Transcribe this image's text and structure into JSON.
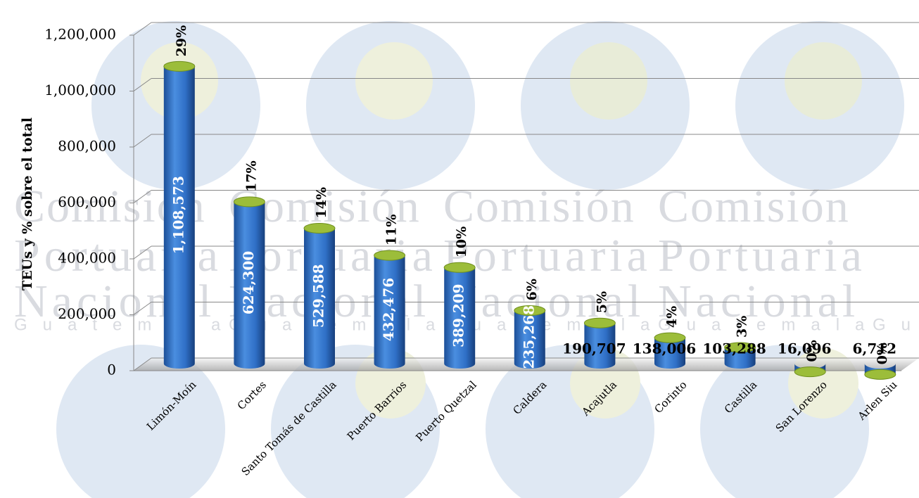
{
  "chart_data": {
    "type": "cylinder-bar",
    "y_label": "TEUs y % sobre el total",
    "categories": [
      "Limón-Moín",
      "Cortes",
      "Santo Tomás de Castilla",
      "Puerto Barrios",
      "Puerto Quetzal",
      "Caldera",
      "Acajutla",
      "Corinto",
      "Castilla",
      "San Lorenzo",
      "Arlen Siu"
    ],
    "values": [
      1108573,
      624300,
      529588,
      432476,
      389209,
      235268,
      190707,
      138006,
      103288,
      16096,
      6712
    ],
    "value_labels": [
      "1,108,573",
      "624,300",
      "529,588",
      "432,476",
      "389,209",
      "235,268",
      "190,707",
      "138,006",
      "103,288",
      "16,096",
      "6,712"
    ],
    "percent_values": [
      29,
      17,
      14,
      11,
      10,
      6,
      5,
      4,
      3,
      0,
      0
    ],
    "percent_labels": [
      "29%",
      "17%",
      "14%",
      "11%",
      "10%",
      "6%",
      "5%",
      "4%",
      "3%",
      "0%",
      "0%"
    ],
    "color": "#2f6fc6",
    "top_color": "#9cbd3a",
    "ylim": [
      0,
      1200000
    ],
    "yticks": [
      0,
      {
        "value": 200000,
        "label": "200,000"
      },
      {
        "value": 400000,
        "label": "400,000"
      },
      {
        "value": 600000,
        "label": "600,000"
      },
      {
        "value": 800000,
        "label": "800,000"
      },
      {
        "value": 1000000,
        "label": "1,000,000"
      },
      {
        "value": 1200000,
        "label": "1,200,000"
      }
    ],
    "grid": true
  },
  "watermark": {
    "lines": [
      "Comisión",
      "Portuaria",
      "Nacional",
      "Guatemala"
    ]
  }
}
